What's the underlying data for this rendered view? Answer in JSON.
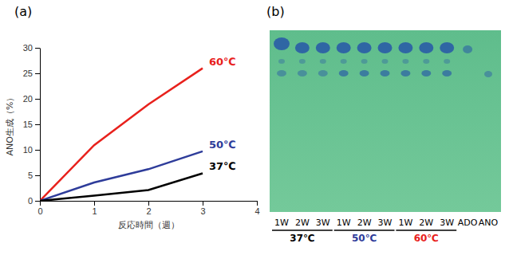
{
  "panel_labels": [
    "(a)",
    "(b)"
  ],
  "chart_data": {
    "type": "line",
    "x_label": "反応時間（週）",
    "y_label": "ANO生成（%）",
    "x": [
      0,
      1,
      2,
      3
    ],
    "xlim": [
      0,
      4
    ],
    "xticks": [
      0,
      1,
      2,
      3,
      4
    ],
    "ylim": [
      0,
      30
    ],
    "yticks": [
      0,
      5,
      10,
      15,
      20,
      25,
      30
    ],
    "grid": false,
    "series": [
      {
        "name": "60℃",
        "color": "#e8211c",
        "values": [
          0,
          10.9,
          18.9,
          26
        ]
      },
      {
        "name": "50℃",
        "color": "#2e3c9a",
        "values": [
          0,
          3.6,
          6.2,
          9.7
        ]
      },
      {
        "name": "37℃",
        "color": "#000000",
        "values": [
          0,
          1,
          2.1,
          5.4
        ]
      }
    ]
  },
  "tlc_plate": {
    "groups": [
      {
        "label": "37℃",
        "lanes": [
          "1W",
          "2W",
          "3W"
        ]
      },
      {
        "label": "50℃",
        "lanes": [
          "1W",
          "2W",
          "3W"
        ]
      },
      {
        "label": "60℃",
        "lanes": [
          "1W",
          "2W",
          "3W"
        ]
      }
    ],
    "standards": [
      "ADO",
      "ANO"
    ]
  }
}
